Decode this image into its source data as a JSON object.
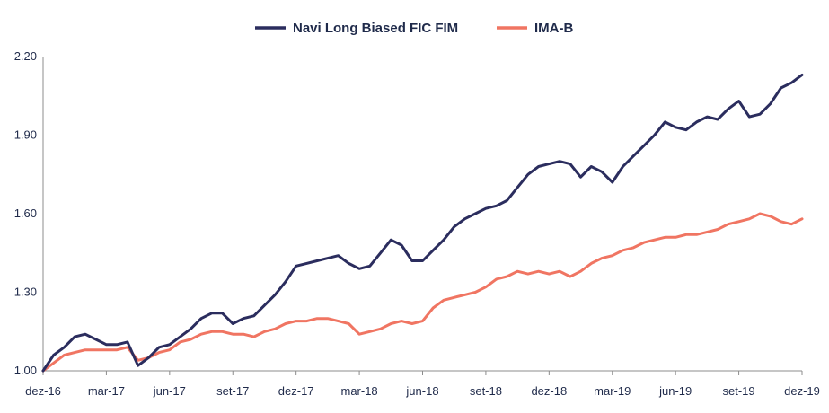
{
  "chart_data": {
    "type": "line",
    "title": "",
    "xlabel": "",
    "ylabel": "",
    "ylim": [
      1.0,
      2.2
    ],
    "y_ticks": [
      "1.00",
      "1.30",
      "1.60",
      "1.90",
      "2.20"
    ],
    "y_tick_values": [
      1.0,
      1.3,
      1.6,
      1.9,
      2.2
    ],
    "x_tick_labels": [
      "dez-16",
      "mar-17",
      "jun-17",
      "set-17",
      "dez-17",
      "mar-18",
      "jun-18",
      "set-18",
      "dez-18",
      "mar-19",
      "jun-19",
      "set-19",
      "dez-19"
    ],
    "x_range_months": [
      0,
      36
    ],
    "legend_position": "top-center",
    "grid": false,
    "x": [
      0,
      0.5,
      1,
      1.5,
      2,
      2.5,
      3,
      3.5,
      4,
      4.5,
      5,
      5.5,
      6,
      6.5,
      7,
      7.5,
      8,
      8.5,
      9,
      9.5,
      10,
      10.5,
      11,
      11.5,
      12,
      12.5,
      13,
      13.5,
      14,
      14.5,
      15,
      15.5,
      16,
      16.5,
      17,
      17.5,
      18,
      18.5,
      19,
      19.5,
      20,
      20.5,
      21,
      21.5,
      22,
      22.5,
      23,
      23.5,
      24,
      24.5,
      25,
      25.5,
      26,
      26.5,
      27,
      27.5,
      28,
      28.5,
      29,
      29.5,
      30,
      30.5,
      31,
      31.5,
      32,
      32.5,
      33,
      33.5,
      34,
      34.5,
      35,
      35.5,
      36
    ],
    "series": [
      {
        "name": "Navi Long Biased FIC FIM",
        "color": "#2b2d5e",
        "values": [
          1.0,
          1.06,
          1.09,
          1.13,
          1.14,
          1.12,
          1.1,
          1.1,
          1.11,
          1.02,
          1.05,
          1.09,
          1.1,
          1.13,
          1.16,
          1.2,
          1.22,
          1.22,
          1.18,
          1.2,
          1.21,
          1.25,
          1.29,
          1.34,
          1.4,
          1.41,
          1.42,
          1.43,
          1.44,
          1.41,
          1.39,
          1.4,
          1.45,
          1.5,
          1.48,
          1.42,
          1.42,
          1.46,
          1.5,
          1.55,
          1.58,
          1.6,
          1.62,
          1.63,
          1.65,
          1.7,
          1.75,
          1.78,
          1.79,
          1.8,
          1.79,
          1.74,
          1.78,
          1.76,
          1.72,
          1.78,
          1.82,
          1.86,
          1.9,
          1.95,
          1.93,
          1.92,
          1.95,
          1.97,
          1.96,
          2.0,
          2.03,
          1.97,
          1.98,
          2.02,
          2.08,
          2.1,
          2.13
        ]
      },
      {
        "name": "IMA-B",
        "color": "#f07562",
        "values": [
          1.0,
          1.03,
          1.06,
          1.07,
          1.08,
          1.08,
          1.08,
          1.08,
          1.09,
          1.04,
          1.05,
          1.07,
          1.08,
          1.11,
          1.12,
          1.14,
          1.15,
          1.15,
          1.14,
          1.14,
          1.13,
          1.15,
          1.16,
          1.18,
          1.19,
          1.19,
          1.2,
          1.2,
          1.19,
          1.18,
          1.14,
          1.15,
          1.16,
          1.18,
          1.19,
          1.18,
          1.19,
          1.24,
          1.27,
          1.28,
          1.29,
          1.3,
          1.32,
          1.35,
          1.36,
          1.38,
          1.37,
          1.38,
          1.37,
          1.38,
          1.36,
          1.38,
          1.41,
          1.43,
          1.44,
          1.46,
          1.47,
          1.49,
          1.5,
          1.51,
          1.51,
          1.52,
          1.52,
          1.53,
          1.54,
          1.56,
          1.57,
          1.58,
          1.6,
          1.59,
          1.57,
          1.56,
          1.58
        ]
      }
    ]
  }
}
